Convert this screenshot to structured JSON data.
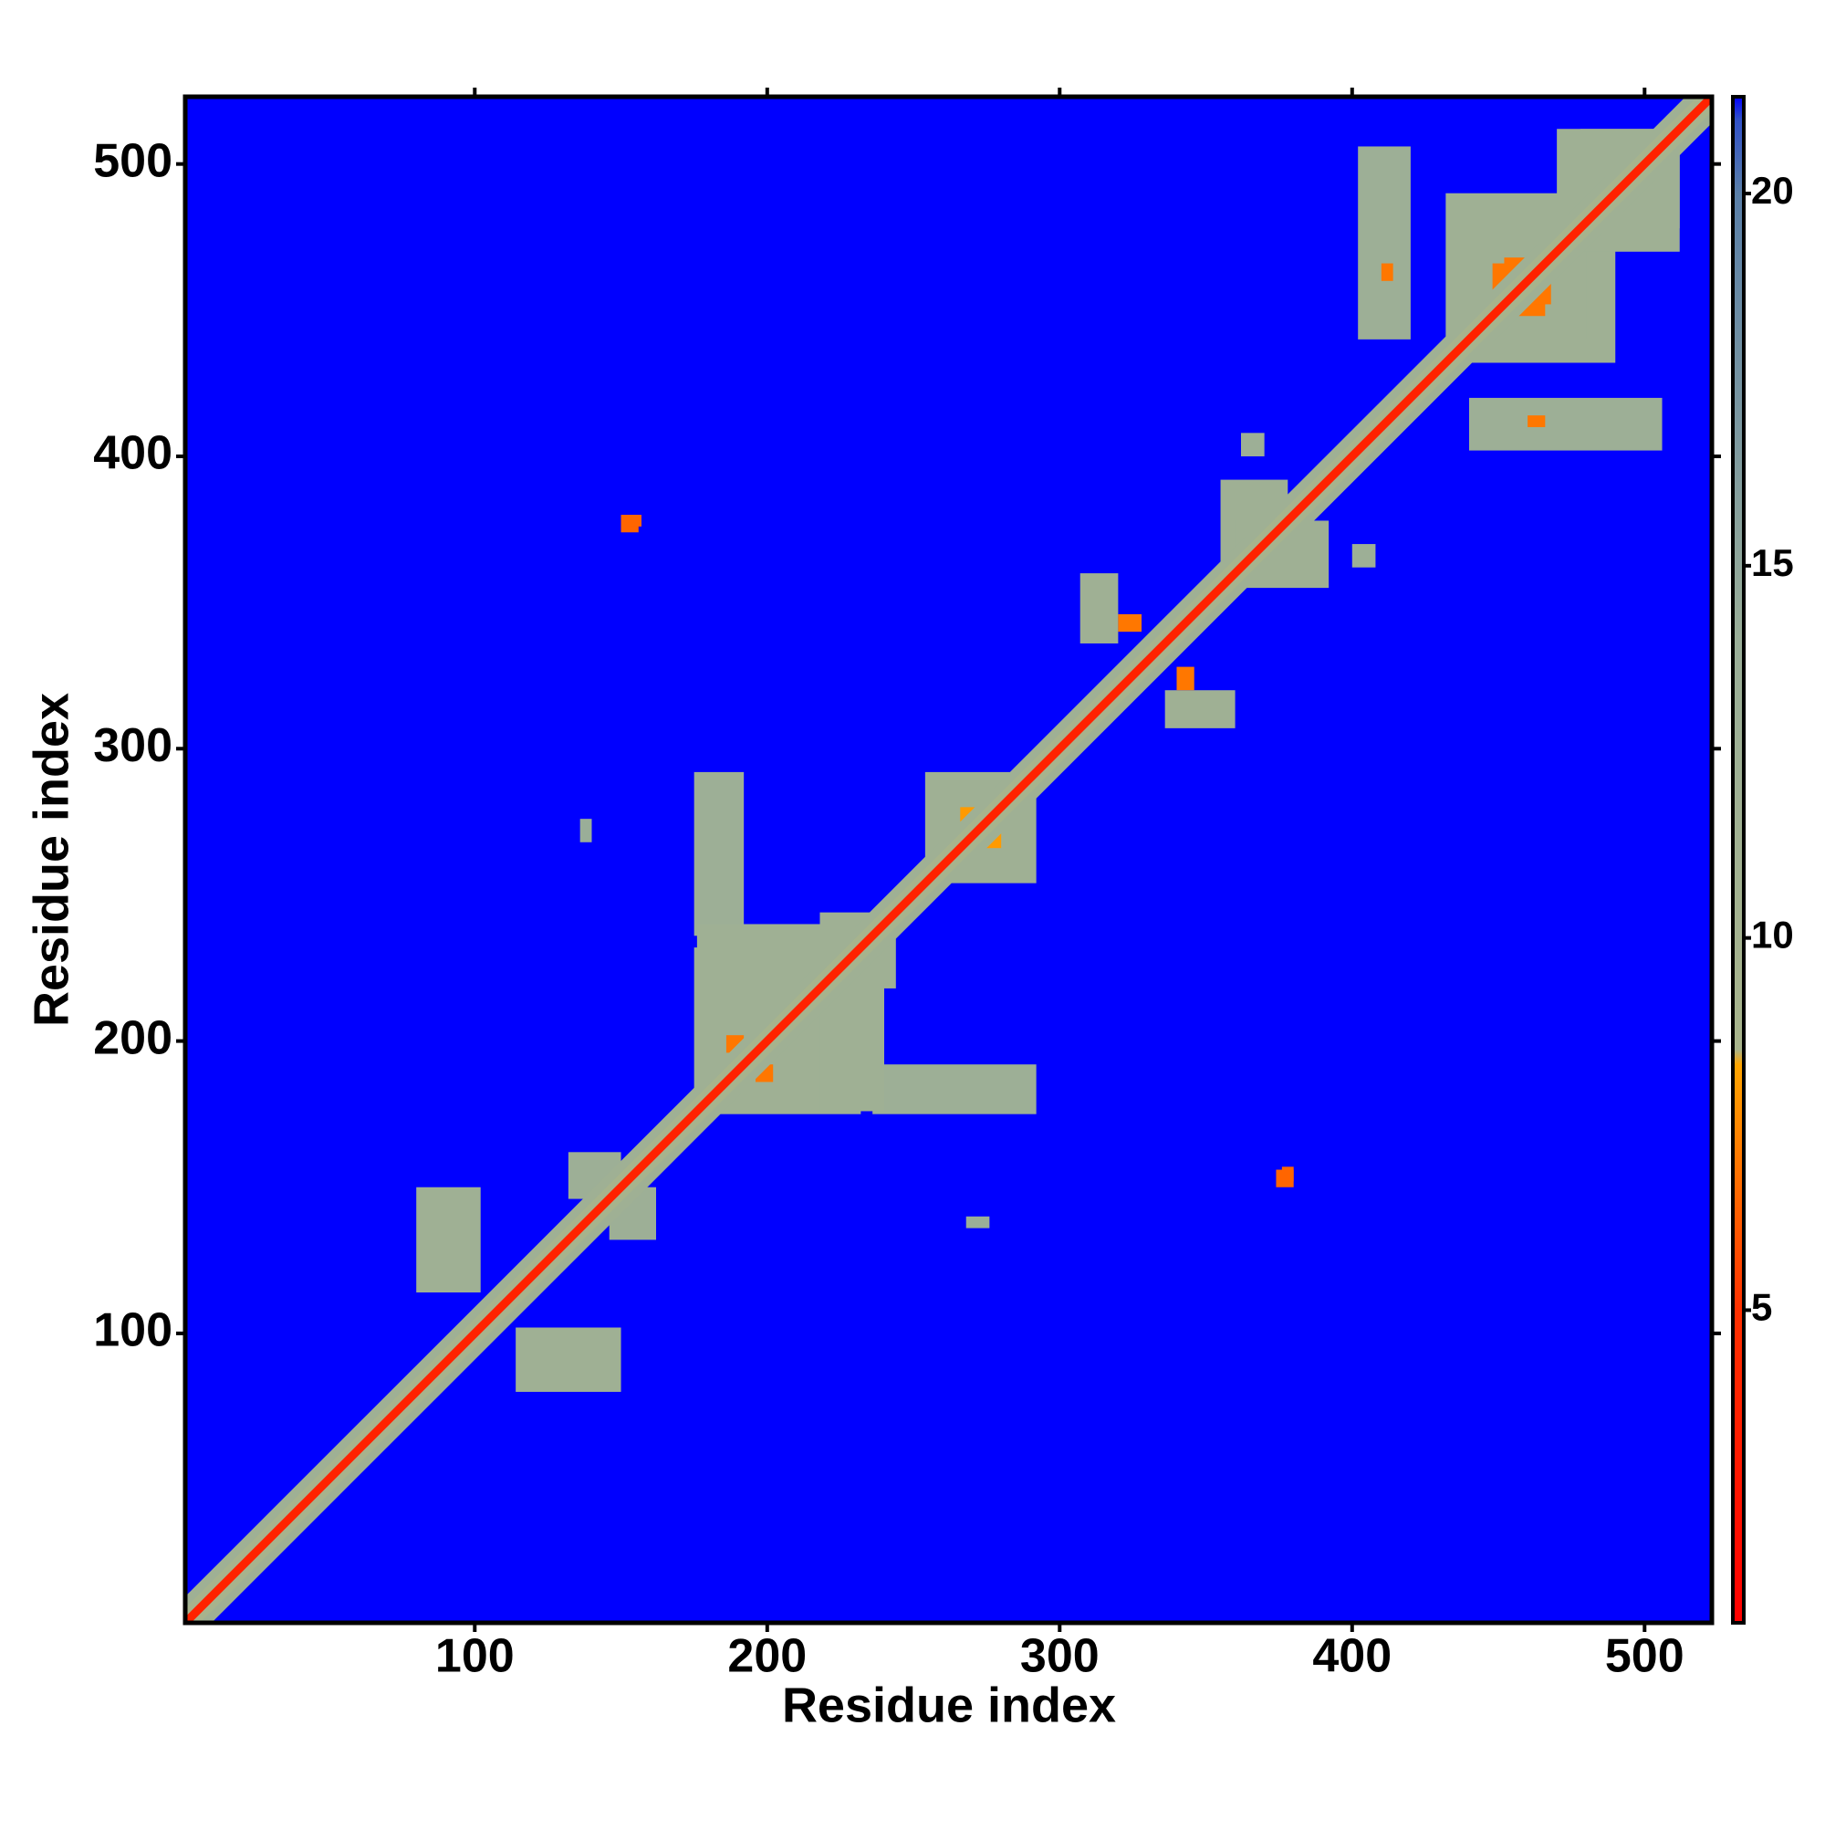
{
  "chart_data": {
    "type": "heatmap",
    "xlabel": "Residue index",
    "ylabel": "Residue index",
    "xlim": [
      1,
      523
    ],
    "ylim": [
      1,
      523
    ],
    "xticks": [
      100,
      200,
      300,
      400,
      500
    ],
    "yticks": [
      100,
      200,
      300,
      400,
      500
    ],
    "background_color": "#0000ff",
    "symmetric": true,
    "diagonal": {
      "offsets": [
        9,
        5,
        2
      ],
      "values": [
        12,
        9,
        3.8
      ]
    },
    "blocks": {
      "x0": [
        80,
        132,
        175,
        175,
        218,
        254,
        307,
        355,
        402,
        440,
        470,
        136,
        150,
        186,
        266,
        362,
        376,
        410,
        448,
        462,
        320
      ],
      "x1": [
        102,
        150,
        192,
        212,
        240,
        290,
        320,
        378,
        420,
        490,
        512,
        140,
        156,
        192,
        272,
        370,
        380,
        414,
        456,
        468,
        328
      ],
      "y0": [
        114,
        146,
        236,
        182,
        176,
        258,
        336,
        360,
        440,
        432,
        478,
        268,
        374,
        196,
        270,
        400,
        152,
        460,
        456,
        452,
        340
      ],
      "y1": [
        150,
        162,
        292,
        232,
        244,
        292,
        360,
        392,
        506,
        480,
        512,
        276,
        380,
        202,
        280,
        408,
        157,
        466,
        466,
        460,
        346
      ],
      "values": [
        12,
        13,
        13,
        12,
        12,
        12,
        12,
        12,
        13,
        12,
        12,
        14,
        6.5,
        7,
        8,
        13,
        6.5,
        7,
        7,
        7,
        7
      ]
    },
    "colorbar": {
      "lim": [
        0.8,
        21.3
      ],
      "ticks": [
        5,
        10,
        15,
        20
      ],
      "stops": [
        {
          "value": 0.8,
          "color": "#ff0000"
        },
        {
          "value": 5,
          "color": "#ff3000"
        },
        {
          "value": 8.3,
          "color": "#ffa500"
        },
        {
          "value": 8.5,
          "color": "#a8b48c"
        },
        {
          "value": 14,
          "color": "#9aae98"
        },
        {
          "value": 20,
          "color": "#5a7fa8"
        },
        {
          "value": 21,
          "color": "#3050c8"
        },
        {
          "value": 21.3,
          "color": "#0000ff"
        }
      ]
    }
  }
}
